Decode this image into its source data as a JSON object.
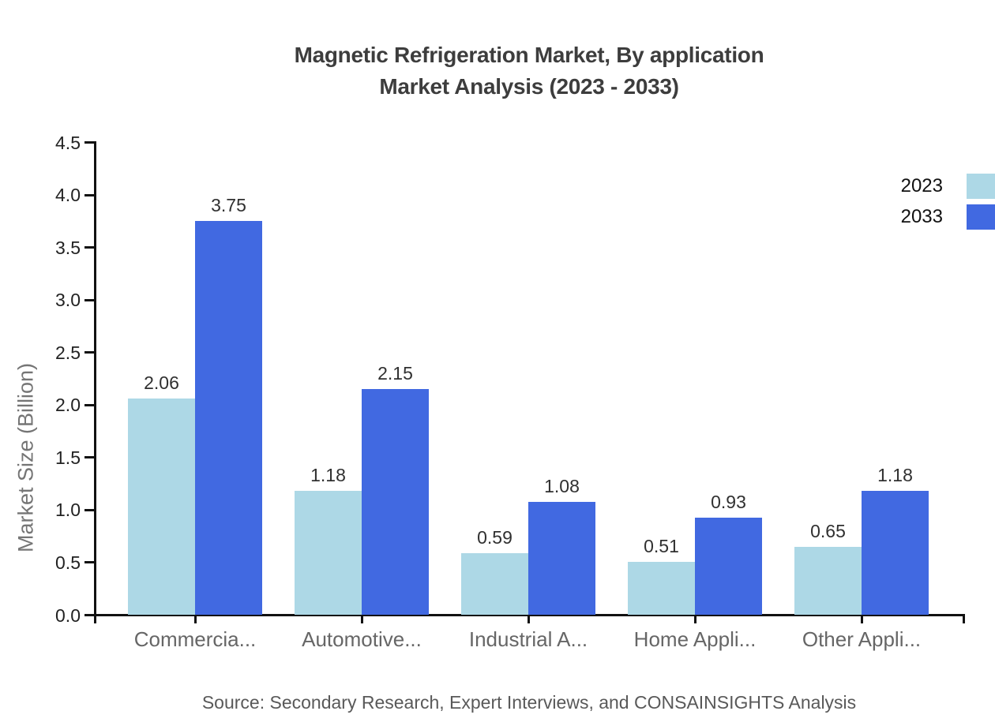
{
  "title": {
    "line1": "Magnetic Refrigeration Market, By application",
    "line2": "Market Analysis (2023 - 2033)"
  },
  "legend": [
    {
      "label": "2023",
      "color": "#ADD8E6"
    },
    {
      "label": "2033",
      "color": "#4169E1"
    }
  ],
  "source": "Source: Secondary Research, Expert Interviews, and CONSAINSIGHTS Analysis",
  "chart_data": {
    "type": "bar",
    "title": "Magnetic Refrigeration Market, By application Market Analysis (2023 - 2033)",
    "categories": [
      "Commercia...",
      "Automotive...",
      "Industrial A...",
      "Home Appli...",
      "Other Appli..."
    ],
    "series": [
      {
        "name": "2023",
        "color": "#ADD8E6",
        "values": [
          2.06,
          1.18,
          0.59,
          0.51,
          0.65
        ]
      },
      {
        "name": "2033",
        "color": "#4169E1",
        "values": [
          3.75,
          2.15,
          1.08,
          0.93,
          1.18
        ]
      }
    ],
    "xlabel": "",
    "ylabel": "Market Size (Billion)",
    "ylim": [
      0,
      4.5
    ],
    "ytick_step": 0.5,
    "grid": false,
    "legend_position": "top-right",
    "value_labels": true,
    "value_label_decimals": 2,
    "axis_color": "#111111",
    "background": "#ffffff"
  }
}
